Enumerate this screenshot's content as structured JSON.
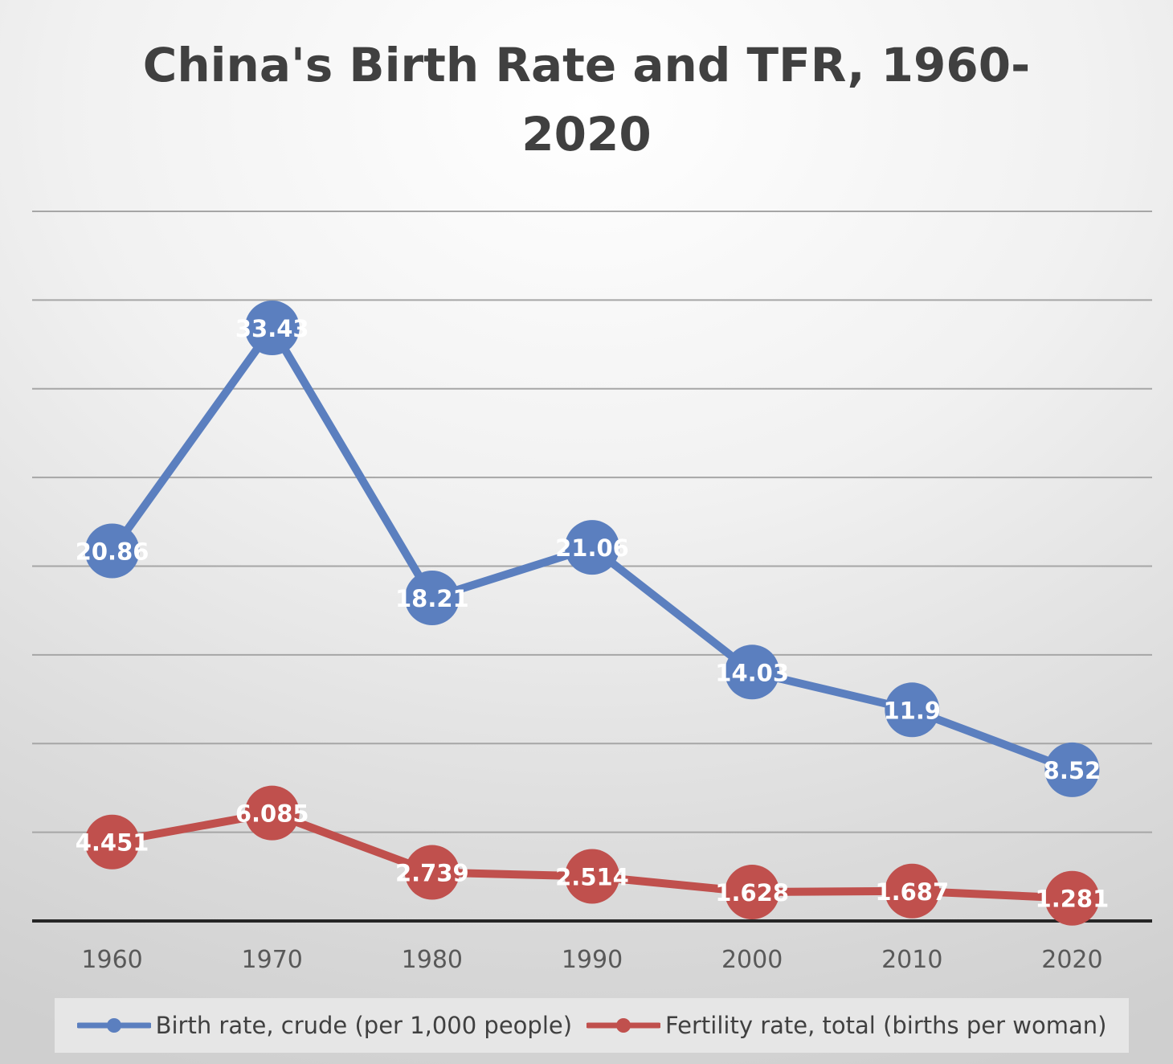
{
  "chart_data": {
    "type": "line",
    "title": "China's Birth Rate and TFR, 1960-2020",
    "categories": [
      "1960",
      "1970",
      "1980",
      "1990",
      "2000",
      "2010",
      "2020"
    ],
    "series": [
      {
        "name": "Birth rate, crude (per 1,000 people)",
        "values": [
          20.86,
          33.43,
          18.21,
          21.06,
          14.03,
          11.9,
          8.52
        ],
        "labels": [
          "20.86",
          "33.43",
          "18.21",
          "21.06",
          "14.03",
          "11.9",
          "8.52"
        ],
        "color": "#5b7fbf"
      },
      {
        "name": "Fertility rate, total (births per woman)",
        "values": [
          4.451,
          6.085,
          2.739,
          2.514,
          1.628,
          1.687,
          1.281
        ],
        "labels": [
          "4.451",
          "6.085",
          "2.739",
          "2.514",
          "1.628",
          "1.687",
          "1.281"
        ],
        "color": "#c0504d"
      }
    ],
    "xlabel": "",
    "ylabel": "",
    "ylim": [
      0,
      40
    ],
    "y_axis_labels_shown": false,
    "grid": true,
    "legend": "bottom"
  }
}
